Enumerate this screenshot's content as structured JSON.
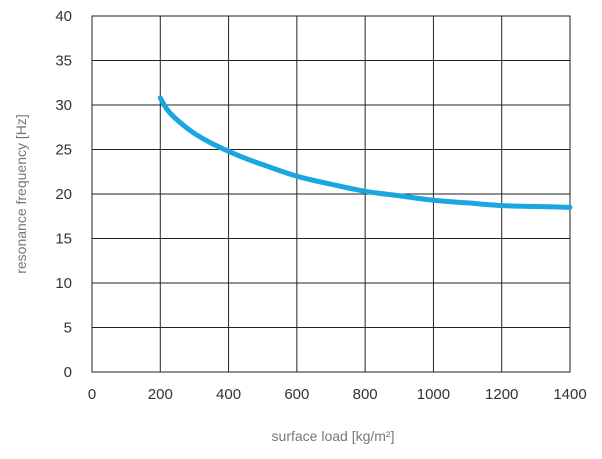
{
  "chart_data": {
    "type": "line",
    "title": "",
    "xlabel": "surface load [kg/m²]",
    "ylabel": "resonance frequency [Hz]",
    "xlim": [
      0,
      1400
    ],
    "ylim": [
      0,
      40
    ],
    "xticks": [
      0,
      200,
      400,
      600,
      800,
      1000,
      1200,
      1400
    ],
    "yticks": [
      0,
      5,
      10,
      15,
      20,
      25,
      30,
      35,
      40
    ],
    "grid": true,
    "legend": "none",
    "series": [
      {
        "color": "#1aa7e0",
        "x": [
          200,
          220,
          250,
          300,
          350,
          400,
          450,
          500,
          600,
          700,
          800,
          900,
          1000,
          1100,
          1200,
          1300,
          1400
        ],
        "y": [
          30.8,
          29.5,
          28.3,
          26.8,
          25.7,
          24.8,
          24.0,
          23.3,
          22.0,
          21.1,
          20.3,
          19.8,
          19.3,
          19.0,
          18.7,
          18.6,
          18.5
        ]
      }
    ]
  }
}
